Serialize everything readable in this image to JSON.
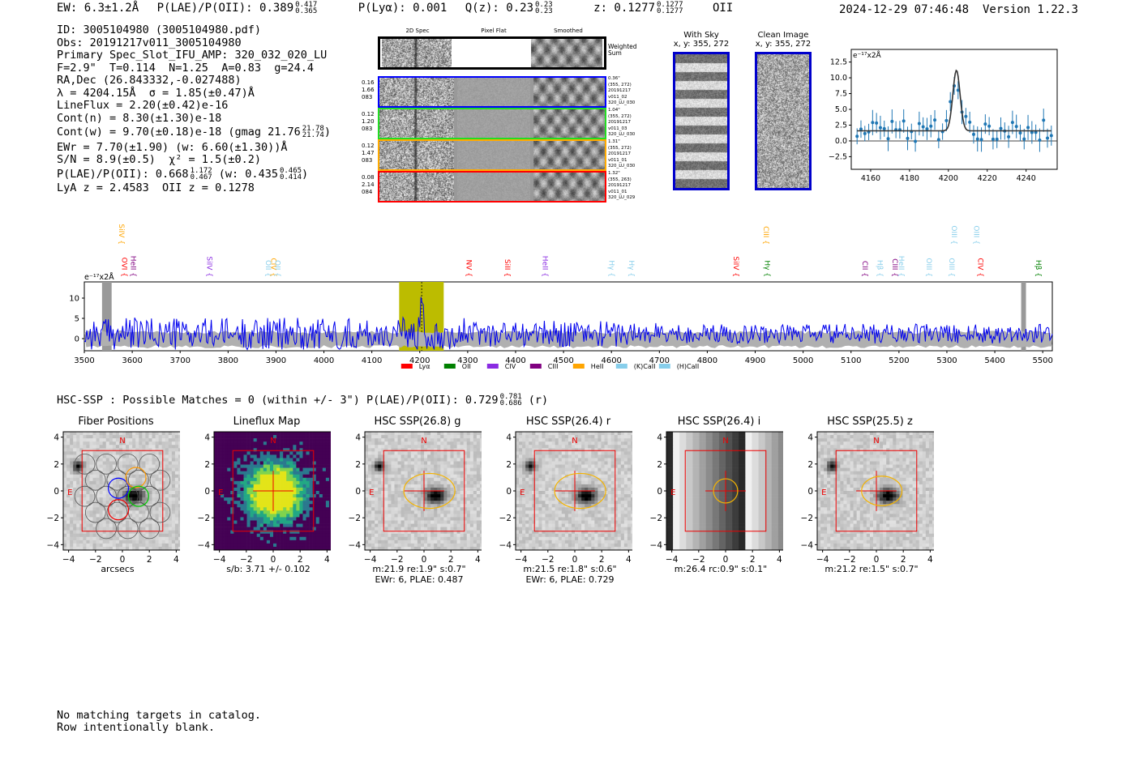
{
  "header": {
    "ew": "EW: 6.3±1.2Å",
    "plae_label": "P(LAE)/P(OII): 0.389",
    "plae_hi": "0.417",
    "plae_lo": "0.365",
    "plya": "P(Lyα): 0.001",
    "qz_label": "Q(z): 0.23",
    "qz_hi": "0.23",
    "qz_lo": "0.23",
    "z_label": "z: 0.1277",
    "z_hi": "0.1277",
    "z_lo": "0.1277",
    "z_line": "OII",
    "timestamp": "2024-12-29 07:46:48",
    "version": "Version 1.22.3"
  },
  "info": {
    "id": "ID: 3005104980 (3005104980.pdf)",
    "obs": "Obs: 20191217v011_3005104980",
    "primary": "Primary Spec_Slot_IFU_AMP: 320_032_020_LU",
    "params": "F=2.9\"  T=0.114  N=1.25  A=0.83  g=24.4",
    "radec": "RA,Dec (26.843332,-0.027488)",
    "lambda": "λ = 4204.15Å  σ = 1.85(±0.47)Å",
    "lineflux": "LineFlux = 2.20(±0.42)e-16",
    "contn": "Cont(n) = 8.30(±1.30)e-18",
    "contw": "Cont(w) = 9.70(±0.18)e-18 (gmag 21.76",
    "contw_hi": "21.78",
    "contw_lo": "21.74",
    "contw_end": ")",
    "ewr": "EWr = 7.70(±1.90) (w: 6.60(±1.30))Å",
    "sn": "S/N = 8.9(±0.5)  χ² = 1.5(±0.2)",
    "plae": "P(LAE)/P(OII): 0.668",
    "plae_hi": "1.172",
    "plae_lo": "0.467",
    "plae_w": "(w: 0.435",
    "plae_w_hi": "0.465",
    "plae_w_lo": "0.414",
    "plae_w_end": ")",
    "zline": "LyA z = 2.4583  OII z = 0.1278"
  },
  "spec2d": {
    "col_titles": [
      "2D Spec",
      "Pixel Flat",
      "Smoothed"
    ],
    "weighted_sum": "Weighted Sum",
    "rows": [
      {
        "left": [
          "0.16",
          "1.66",
          "083"
        ],
        "right": [
          "0.36\"",
          "(355, 272)",
          "20191217",
          "v011_02",
          "320_LU_030"
        ],
        "color": "#0000ff"
      },
      {
        "left": [
          "0.12",
          "1.20",
          "083"
        ],
        "right": [
          "1.04\"",
          "(355, 272)",
          "20191217",
          "v011_03",
          "320_LU_030"
        ],
        "color": "#22dd22"
      },
      {
        "left": [
          "0.12",
          "1.47",
          "083"
        ],
        "right": [
          "1.31\"",
          "(355, 272)",
          "20191217",
          "v011_01",
          "320_LU_030"
        ],
        "color": "#ffaa00"
      },
      {
        "left": [
          "0.08",
          "2.14",
          "084"
        ],
        "right": [
          "1.32\"",
          "(355, 263)",
          "20191217",
          "v011_01",
          "320_LU_029"
        ],
        "color": "#ff0000"
      }
    ]
  },
  "sky_panels": {
    "with_sky_title": "With Sky",
    "with_sky_coords": "x, y: 355, 272",
    "clean_title": "Clean Image",
    "clean_coords": "x, y: 355, 272"
  },
  "line_fit": {
    "unit_label": "e⁻¹⁷x2Å",
    "y_ticks": [
      "12.5",
      "10.0",
      "7.5",
      "5.0",
      "2.5",
      "0.0",
      "−2.5"
    ],
    "x_ticks": [
      "4160",
      "4180",
      "4200",
      "4220",
      "4240"
    ]
  },
  "full_spectrum": {
    "unit_label": "e⁻¹⁷x2Å",
    "y_ticks": [
      "10",
      "5",
      "0"
    ],
    "x_ticks": [
      "3500",
      "3600",
      "3700",
      "3800",
      "3900",
      "4000",
      "4100",
      "4200",
      "4300",
      "4400",
      "4500",
      "4600",
      "4700",
      "4800",
      "4900",
      "5000",
      "5100",
      "5200",
      "5300",
      "5400",
      "5500"
    ],
    "lines": [
      {
        "label": "SiIV",
        "wave": 3568,
        "color": "#ffa500",
        "high": true
      },
      {
        "label": "OVI",
        "wave": 3574,
        "color": "#ff0000",
        "high": false
      },
      {
        "label": "HeII",
        "wave": 3592,
        "color": "#800080",
        "high": false
      },
      {
        "label": "SiIV",
        "wave": 3751,
        "color": "#8a2be2",
        "high": false
      },
      {
        "label": "OII",
        "wave": 3874,
        "color": "#87ceeb",
        "high": false
      },
      {
        "label": "CIV",
        "wave": 3885,
        "color": "#ffa500",
        "high": false
      },
      {
        "label": "OII",
        "wave": 3893,
        "color": "#87ceeb",
        "high": false
      },
      {
        "label": "NV",
        "wave": 4293,
        "color": "#ff0000",
        "high": false
      },
      {
        "label": "SiII",
        "wave": 4373,
        "color": "#ff0000",
        "high": false
      },
      {
        "label": "HeII",
        "wave": 4452,
        "color": "#8a2be2",
        "high": false
      },
      {
        "label": "Hγ",
        "wave": 4590,
        "color": "#87ceeb",
        "high": false
      },
      {
        "label": "Hγ",
        "wave": 4632,
        "color": "#87ceeb",
        "high": false
      },
      {
        "label": "SiIV",
        "wave": 4850,
        "color": "#ff0000",
        "high": false
      },
      {
        "label": "CIII",
        "wave": 4913,
        "color": "#ffa500",
        "high": true
      },
      {
        "label": "Hγ",
        "wave": 4915,
        "color": "#008000",
        "high": false
      },
      {
        "label": "CII",
        "wave": 5119,
        "color": "#800080",
        "high": false
      },
      {
        "label": "Hβ",
        "wave": 5150,
        "color": "#87ceeb",
        "high": false
      },
      {
        "label": "CIII",
        "wave": 5182,
        "color": "#800080",
        "high": false
      },
      {
        "label": "HeII",
        "wave": 5195,
        "color": "#87ceeb",
        "high": false
      },
      {
        "label": "OIII",
        "wave": 5253,
        "color": "#87ceeb",
        "high": false
      },
      {
        "label": "OIII",
        "wave": 5305,
        "color": "#87ceeb",
        "high": true
      },
      {
        "label": "OIII",
        "wave": 5300,
        "color": "#87ceeb",
        "high": false
      },
      {
        "label": "OIII",
        "wave": 5352,
        "color": "#87ceeb",
        "high": true
      },
      {
        "label": "CIV",
        "wave": 5360,
        "color": "#ff0000",
        "high": false
      },
      {
        "label": "Hβ",
        "wave": 5481,
        "color": "#008000",
        "high": false
      }
    ],
    "legend": [
      {
        "label": "Lyα",
        "color": "#ff0000"
      },
      {
        "label": "OII",
        "color": "#008000"
      },
      {
        "label": "CIV",
        "color": "#8a2be2"
      },
      {
        "label": "CIII",
        "color": "#800080"
      },
      {
        "label": "HeII",
        "color": "#ffa500"
      },
      {
        "label": "(K)CaII",
        "color": "#87ceeb"
      },
      {
        "label": "(H)CaII",
        "color": "#87ceeb"
      }
    ]
  },
  "hsc": {
    "summary": "HSC-SSP : Possible Matches = 0 (within +/- 3\")  P(LAE)/P(OII): 0.729",
    "plae_hi": "0.781",
    "plae_lo": "0.686",
    "band": "(r)",
    "cutouts": [
      {
        "title": "Fiber Positions",
        "caption1": "arcsecs",
        "caption2": ""
      },
      {
        "title": "Lineflux Map",
        "caption1": "s/b: 3.71 +/- 0.102",
        "caption2": ""
      },
      {
        "title": "HSC SSP(26.8) g",
        "caption1": "m:21.9  re:1.9\"  s:0.7\"",
        "caption2": "EWr: 6, PLAE: 0.487"
      },
      {
        "title": "HSC SSP(26.4) r",
        "caption1": "m:21.5  re:1.8\"  s:0.6\"",
        "caption2": "EWr: 6, PLAE: 0.729"
      },
      {
        "title": "HSC SSP(26.4) i",
        "caption1": "m:26.4 rc:0.9\"  s:0.1\"",
        "caption2": ""
      },
      {
        "title": "HSC SSP(25.5) z",
        "caption1": "m:21.2  re:1.5\"  s:0.7\"",
        "caption2": ""
      }
    ],
    "axis_ticks": [
      "4",
      "2",
      "0",
      "−2",
      "−4"
    ],
    "compass_n": "N",
    "compass_e": "E"
  },
  "catalog_note": {
    "line1": "No matching targets in catalog.",
    "line2": "Row intentionally blank."
  }
}
